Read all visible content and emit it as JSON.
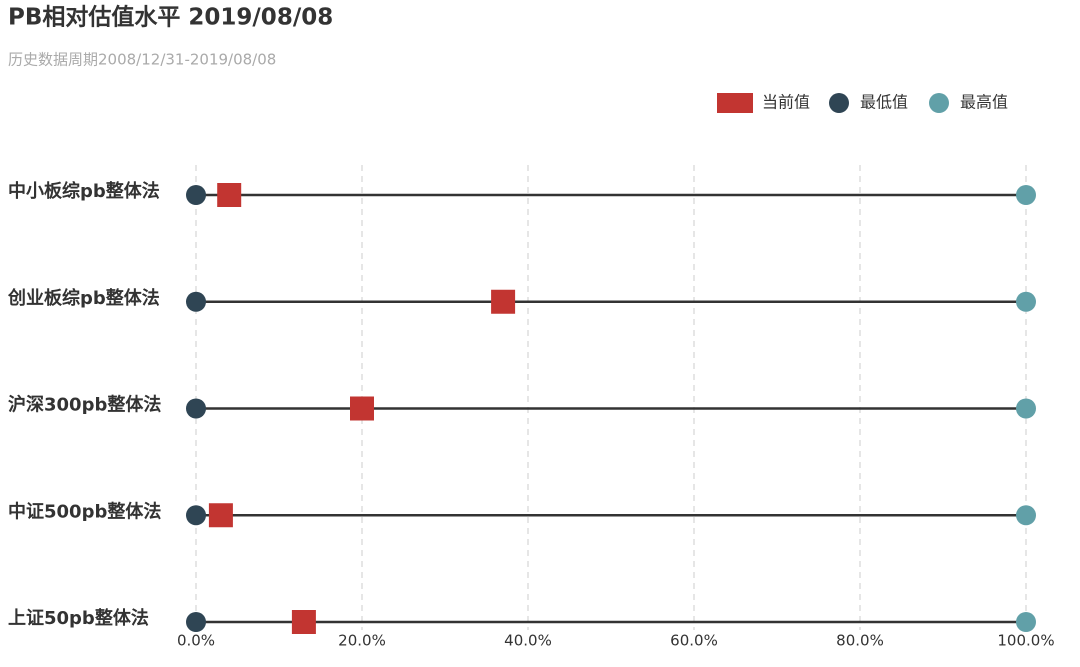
{
  "chart_data": {
    "type": "dot",
    "title": "PB相对估值水平 2019/08/08",
    "subtitle": "历史数据周期2008/12/31-2019/08/08",
    "categories": [
      "中小板综pb整体法",
      "创业板综pb整体法",
      "沪深300pb整体法",
      "中证500pb整体法",
      "上证50pb整体法"
    ],
    "series": [
      {
        "name": "当前值",
        "color": "#c23531",
        "values": [
          4,
          37,
          20,
          3,
          13
        ]
      },
      {
        "name": "最低值",
        "color": "#2f4554",
        "values": [
          0,
          0,
          0,
          0,
          0
        ]
      },
      {
        "name": "最高值",
        "color": "#61a0a8",
        "values": [
          100,
          100,
          100,
          100,
          100
        ]
      }
    ],
    "xlim": [
      0,
      100
    ],
    "xticks": [
      {
        "value": 0,
        "label": "0.0%"
      },
      {
        "value": 20,
        "label": "20.0%"
      },
      {
        "value": 40,
        "label": "40.0%"
      },
      {
        "value": 60,
        "label": "60.0%"
      },
      {
        "value": 80,
        "label": "80.0%"
      },
      {
        "value": 100,
        "label": "100.0%"
      }
    ],
    "grid": true,
    "legend": "top-right"
  }
}
